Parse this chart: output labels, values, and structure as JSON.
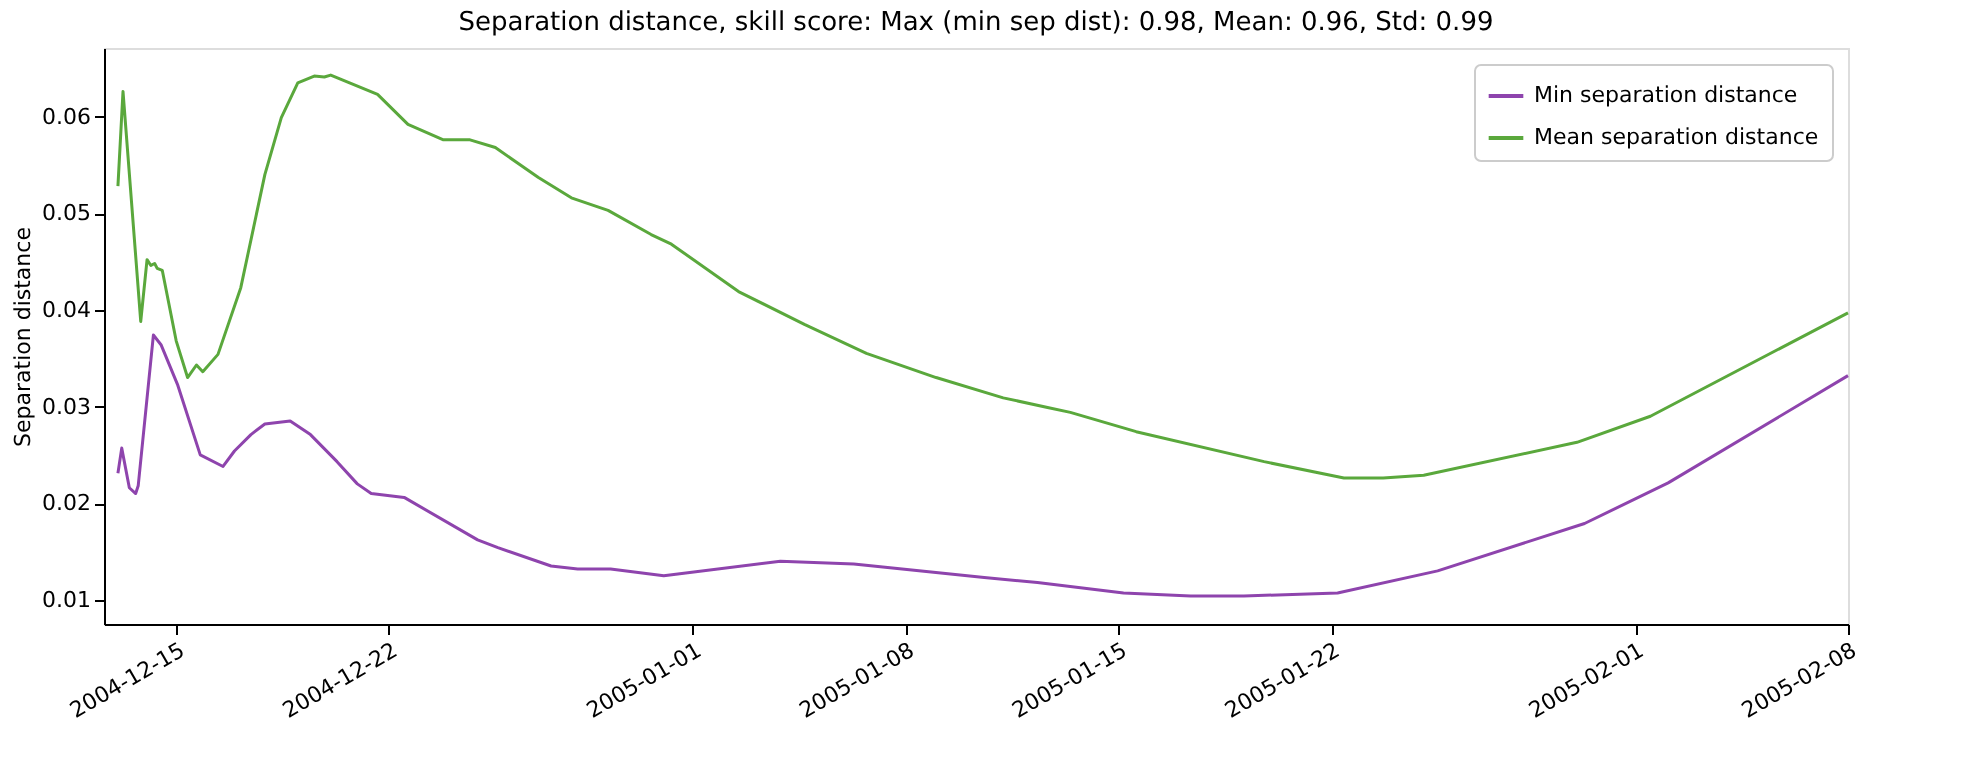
{
  "chart_data": {
    "type": "line",
    "title": "Separation distance, skill score: Max (min sep dist): 0.98, Mean: 0.96, Std: 0.99",
    "ylabel": "Separation distance",
    "xlim": [
      "2004-12-12T15:00",
      "2005-02-08"
    ],
    "xticks": [
      "2004-12-15",
      "2004-12-22",
      "2005-01-01",
      "2005-01-08",
      "2005-01-15",
      "2005-01-22",
      "2005-02-01",
      "2005-02-08"
    ],
    "ylim": [
      0.0075,
      0.0671
    ],
    "yticks": [
      0.01,
      0.02,
      0.03,
      0.04,
      0.05,
      0.06
    ],
    "grid": false,
    "legend": "top right",
    "line_style": "solid",
    "marker": "none",
    "series": [
      {
        "name": "Min separation distance",
        "color": "#8e44ad",
        "x": [
          "2004-12-13T02:00",
          "2004-12-13T05:00",
          "2004-12-13T11:00",
          "2004-12-13T16:00",
          "2004-12-13T18:00",
          "2004-12-14T06:00",
          "2004-12-14T12:00",
          "2004-12-15T01:00",
          "2004-12-15T19:00",
          "2004-12-16T13:00",
          "2004-12-16T22:00",
          "2004-12-17T11:00",
          "2004-12-17T22:00",
          "2004-12-18T18:00",
          "2004-12-19T10:00",
          "2004-12-20T07:00",
          "2004-12-20T23:00",
          "2004-12-21T10:00",
          "2004-12-22T12:00",
          "2004-12-24T22:00",
          "2004-12-25T14:00",
          "2004-12-27T08:00",
          "2004-12-28T05:00",
          "2004-12-29T07:00",
          "2004-12-31T01:00",
          "2005-01-03T21:00",
          "2005-01-06T07:00",
          "2005-01-10T14:00",
          "2005-01-12T08:00",
          "2005-01-15T04:00",
          "2005-01-17T09:00",
          "2005-01-19T03:00",
          "2005-01-22T05:00",
          "2005-01-25T12:00",
          "2005-01-30T08:00",
          "2005-02-02T02:00",
          "2005-02-08"
        ],
        "values": [
          0.0231,
          0.0257,
          0.0216,
          0.021,
          0.0218,
          0.0374,
          0.0364,
          0.0323,
          0.025,
          0.0238,
          0.0254,
          0.0271,
          0.0282,
          0.0285,
          0.0271,
          0.0243,
          0.022,
          0.021,
          0.0206,
          0.0162,
          0.0154,
          0.0135,
          0.0132,
          0.0132,
          0.0125,
          0.014,
          0.0137,
          0.0123,
          0.0118,
          0.0107,
          0.0104,
          0.0104,
          0.0107,
          0.013,
          0.0179,
          0.0221,
          0.0332
        ]
      },
      {
        "name": "Mean separation distance",
        "color": "#5aa83c",
        "x": [
          "2004-12-13T02:00",
          "2004-12-13T06:00",
          "2004-12-13T20:00",
          "2004-12-14T01:00",
          "2004-12-14T04:00",
          "2004-12-14T07:00",
          "2004-12-14T09:00",
          "2004-12-14T13:00",
          "2004-12-15T00:00",
          "2004-12-15T09:00",
          "2004-12-15T16:00",
          "2004-12-15T21:00",
          "2004-12-16T09:00",
          "2004-12-17T03:00",
          "2004-12-17T22:00",
          "2004-12-18T11:00",
          "2004-12-19T00:00",
          "2004-12-19T13:00",
          "2004-12-19T21:00",
          "2004-12-20T02:00",
          "2004-12-21T15:00",
          "2004-12-22T15:00",
          "2004-12-23T19:00",
          "2004-12-24T16:00",
          "2004-12-25T12:00",
          "2004-12-26T22:00",
          "2004-12-28T00:00",
          "2004-12-29T05:00",
          "2004-12-30T15:00",
          "2004-12-31T07:00",
          "2005-01-02T12:00",
          "2005-01-04T16:00",
          "2005-01-06T17:00",
          "2005-01-09T00:00",
          "2005-01-11T05:00",
          "2005-01-12T16:00",
          "2005-01-13T10:00",
          "2005-01-15T14:00",
          "2005-01-19T19:00",
          "2005-01-22T10:00",
          "2005-01-23T17:00",
          "2005-01-25T01:00",
          "2005-01-30T02:00",
          "2005-02-01T12:00",
          "2005-02-08"
        ],
        "values": [
          0.0528,
          0.0626,
          0.0388,
          0.0452,
          0.0446,
          0.0448,
          0.0443,
          0.0441,
          0.0368,
          0.033,
          0.0343,
          0.0336,
          0.0354,
          0.0423,
          0.054,
          0.0599,
          0.0635,
          0.0642,
          0.0641,
          0.0643,
          0.0623,
          0.0592,
          0.0576,
          0.0576,
          0.0568,
          0.0537,
          0.0516,
          0.0503,
          0.0478,
          0.0468,
          0.0419,
          0.0385,
          0.0355,
          0.033,
          0.0309,
          0.0299,
          0.0294,
          0.0274,
          0.0243,
          0.0226,
          0.0226,
          0.0229,
          0.0263,
          0.029,
          0.0397
        ]
      }
    ]
  }
}
